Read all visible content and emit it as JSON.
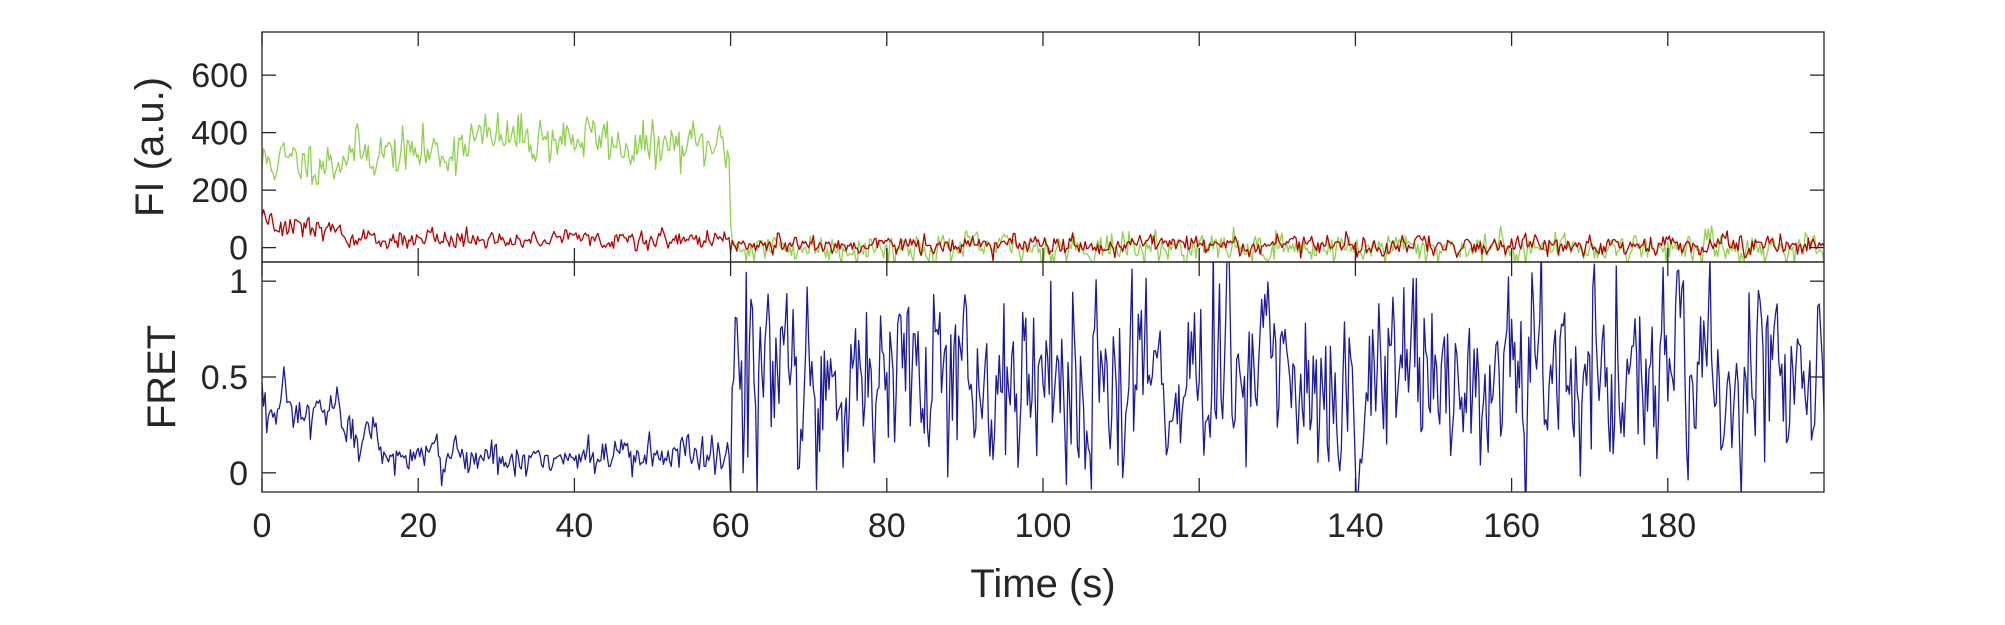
{
  "chart_data": [
    {
      "id": "fluorescence",
      "type": "line",
      "title": "",
      "xlabel": "",
      "ylabel": "FI (a.u.)",
      "xlim": [
        0,
        200
      ],
      "ylim": [
        -50,
        750
      ],
      "xticks": [
        0,
        20,
        40,
        60,
        80,
        100,
        120,
        140,
        160,
        180
      ],
      "xtick_labels_visible": false,
      "yticks": [
        0,
        200,
        400,
        600
      ],
      "ytick_labels": [
        "0",
        "200",
        "400",
        "600"
      ],
      "grid": false,
      "legend": "none",
      "sampling": {
        "dt_s": 0.2,
        "t_start_s": 0,
        "t_end_s": 200
      },
      "series": [
        {
          "color": "#8fd14f",
          "segments": [
            {
              "t0": 0,
              "t1": 10,
              "mean": 300,
              "noise_sd": 70
            },
            {
              "t0": 10,
              "t1": 25,
              "mean": 330,
              "noise_sd": 70
            },
            {
              "t0": 25,
              "t1": 45,
              "mean": 380,
              "noise_sd": 75
            },
            {
              "t0": 45,
              "t1": 60,
              "mean": 350,
              "noise_sd": 70
            },
            {
              "t0": 60,
              "t1": 200,
              "mean": 0,
              "noise_sd": 45
            }
          ]
        },
        {
          "color": "#b50000",
          "segments": [
            {
              "t0": 0,
              "t1": 10,
              "mean": 80,
              "noise_sd": 35
            },
            {
              "t0": 10,
              "t1": 60,
              "mean": 30,
              "noise_sd": 30
            },
            {
              "t0": 60,
              "t1": 200,
              "mean": 10,
              "noise_sd": 30
            }
          ]
        }
      ]
    },
    {
      "id": "fret",
      "type": "line",
      "title": "",
      "xlabel": "Time (s)",
      "ylabel": "FRET",
      "xlim": [
        0,
        200
      ],
      "ylim": [
        -0.1,
        1.1
      ],
      "xticks": [
        0,
        20,
        40,
        60,
        80,
        100,
        120,
        140,
        160,
        180
      ],
      "xtick_labels": [
        "0",
        "20",
        "40",
        "60",
        "80",
        "100",
        "120",
        "140",
        "160",
        "180"
      ],
      "yticks": [
        0,
        0.5,
        1
      ],
      "ytick_labels": [
        "0",
        "0.5",
        "1"
      ],
      "grid": false,
      "legend": "none",
      "sampling": {
        "dt_s": 0.2,
        "t_start_s": 0,
        "t_end_s": 200
      },
      "series": [
        {
          "color": "#1c1c96",
          "segments": [
            {
              "t0": 0,
              "t1": 10,
              "mean": 0.3,
              "noise_sd": 0.12
            },
            {
              "t0": 10,
              "t1": 15,
              "mean": 0.2,
              "noise_sd": 0.12
            },
            {
              "t0": 15,
              "t1": 60,
              "mean": 0.08,
              "noise_sd": 0.09
            },
            {
              "t0": 60,
              "t1": 200,
              "mean": 0.5,
              "noise_sd": 0.45
            }
          ]
        }
      ]
    }
  ]
}
